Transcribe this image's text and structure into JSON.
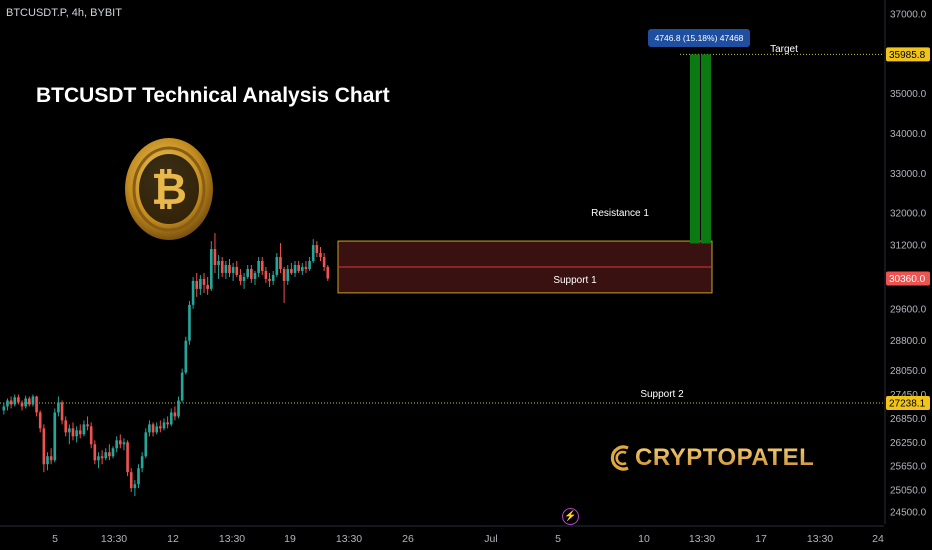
{
  "header": {
    "symbol": "BTCUSDT.P, 4h, BYBIT"
  },
  "title": "BTCUSDT Technical Analysis Chart",
  "brand": {
    "text": "CRYPTOPATEL",
    "icon": "crypto-coin-logo-icon"
  },
  "footer_icon": "lightning-icon",
  "colors": {
    "background": "#000000",
    "up": "#26a69a",
    "down": "#ef5350",
    "zone": "#3a1111",
    "zone_border": "#c9a227",
    "target_bar": "#0b7a13",
    "measure_label": "#1e4fa0",
    "dotted_line": "#c9c332"
  },
  "chart_data": {
    "type": "candlestick",
    "ylim": [
      24200,
      37300
    ],
    "y_axis_ticks": [
      "37000.0",
      "36000.0",
      "35000.0",
      "34000.0",
      "33000.0",
      "32000.0",
      "31200.0",
      "29600.0",
      "28800.0",
      "28050.0",
      "27450.0",
      "26850.0",
      "26250.0",
      "25650.0",
      "25050.0",
      "24500.0"
    ],
    "x_axis_ticks": [
      "5",
      "13:30",
      "12",
      "13:30",
      "19",
      "13:30",
      "26",
      "Jul",
      "5",
      "10",
      "13:30",
      "17",
      "13:30",
      "24"
    ],
    "price_labels": [
      {
        "value": 35985.8,
        "label": "35985.8",
        "color": "#f0c419",
        "text_color": "#000000"
      },
      {
        "value": 30360.0,
        "label": "30360.0",
        "color": "#ef5350",
        "text_color": "#ffffff"
      },
      {
        "value": 27238.1,
        "label": "27238.1",
        "color": "#f0c419",
        "text_color": "#000000"
      }
    ],
    "annotations": {
      "target": {
        "label": "Target",
        "value": 35985.8
      },
      "resistance": {
        "label": "Resistance 1",
        "value": 31300
      },
      "support1": {
        "label": "Support 1",
        "value": 30000
      },
      "support2": {
        "label": "Support 2",
        "value": 27238.1
      },
      "zone": {
        "top": 31300,
        "bottom": 30000,
        "mid": 30650
      },
      "measure": {
        "label": "4746.8 (15.18%) 47468",
        "from": 31240,
        "to": 35985.8
      }
    },
    "candles": [
      [
        0,
        27050,
        27250,
        26950,
        27150
      ],
      [
        1,
        27150,
        27350,
        27050,
        27300
      ],
      [
        2,
        27300,
        27400,
        27100,
        27200
      ],
      [
        3,
        27200,
        27450,
        27150,
        27380
      ],
      [
        4,
        27380,
        27450,
        27200,
        27250
      ],
      [
        5,
        27250,
        27300,
        27050,
        27150
      ],
      [
        6,
        27150,
        27420,
        27100,
        27350
      ],
      [
        7,
        27350,
        27400,
        27150,
        27200
      ],
      [
        8,
        27200,
        27450,
        27150,
        27400
      ],
      [
        9,
        27400,
        27420,
        26900,
        27000
      ],
      [
        10,
        27000,
        27050,
        26500,
        26600
      ],
      [
        11,
        26600,
        26700,
        25500,
        25700
      ],
      [
        12,
        25700,
        26000,
        25550,
        25900
      ],
      [
        13,
        25900,
        26100,
        25700,
        25800
      ],
      [
        14,
        25800,
        27100,
        25750,
        27000
      ],
      [
        15,
        27000,
        27400,
        26900,
        27250
      ],
      [
        16,
        27250,
        27300,
        26700,
        26800
      ],
      [
        17,
        26800,
        26900,
        26400,
        26500
      ],
      [
        18,
        26500,
        26700,
        26200,
        26600
      ],
      [
        19,
        26600,
        26750,
        26300,
        26400
      ],
      [
        20,
        26400,
        26650,
        26250,
        26550
      ],
      [
        21,
        26550,
        26700,
        26350,
        26450
      ],
      [
        22,
        26450,
        26800,
        26400,
        26700
      ],
      [
        23,
        26700,
        26900,
        26550,
        26650
      ],
      [
        24,
        26650,
        26750,
        26100,
        26200
      ],
      [
        25,
        26200,
        26300,
        25700,
        25800
      ],
      [
        26,
        25800,
        26000,
        25600,
        25900
      ],
      [
        27,
        25900,
        26050,
        25700,
        25850
      ],
      [
        28,
        25850,
        26100,
        25800,
        26000
      ],
      [
        29,
        26000,
        26200,
        25800,
        25900
      ],
      [
        30,
        25900,
        26150,
        25850,
        26100
      ],
      [
        31,
        26100,
        26400,
        26000,
        26300
      ],
      [
        32,
        26300,
        26450,
        26100,
        26200
      ],
      [
        33,
        26200,
        26350,
        26050,
        26250
      ],
      [
        34,
        26250,
        26300,
        25400,
        25500
      ],
      [
        35,
        25500,
        25600,
        25000,
        25100
      ],
      [
        36,
        25100,
        25300,
        24900,
        25200
      ],
      [
        37,
        25200,
        25700,
        25100,
        25600
      ],
      [
        38,
        25600,
        26000,
        25500,
        25900
      ],
      [
        39,
        25900,
        26600,
        25850,
        26500
      ],
      [
        40,
        26500,
        26800,
        26400,
        26700
      ],
      [
        41,
        26700,
        26750,
        26400,
        26500
      ],
      [
        42,
        26500,
        26750,
        26450,
        26650
      ],
      [
        43,
        26650,
        26800,
        26500,
        26600
      ],
      [
        44,
        26600,
        26850,
        26550,
        26750
      ],
      [
        45,
        26750,
        26900,
        26600,
        26700
      ],
      [
        46,
        26700,
        27100,
        26650,
        27000
      ],
      [
        47,
        27000,
        27150,
        26800,
        26900
      ],
      [
        48,
        26900,
        27400,
        26850,
        27300
      ],
      [
        49,
        27300,
        28100,
        27250,
        28000
      ],
      [
        50,
        28000,
        28900,
        27950,
        28800
      ],
      [
        51,
        28800,
        29800,
        28700,
        29700
      ],
      [
        52,
        29700,
        30400,
        29600,
        30300
      ],
      [
        53,
        30300,
        30500,
        29900,
        30100
      ],
      [
        54,
        30100,
        30450,
        29950,
        30350
      ],
      [
        55,
        30350,
        30500,
        30000,
        30200
      ],
      [
        56,
        30200,
        30400,
        29950,
        30100
      ],
      [
        57,
        30100,
        31300,
        30050,
        31100
      ],
      [
        58,
        31100,
        31500,
        30500,
        30700
      ],
      [
        59,
        30700,
        30950,
        30350,
        30800
      ],
      [
        60,
        30800,
        30900,
        30400,
        30500
      ],
      [
        61,
        30500,
        30800,
        30350,
        30700
      ],
      [
        62,
        30700,
        30850,
        30400,
        30500
      ],
      [
        63,
        30500,
        30750,
        30300,
        30650
      ],
      [
        64,
        30650,
        30800,
        30400,
        30450
      ],
      [
        65,
        30450,
        30600,
        30200,
        30300
      ],
      [
        66,
        30300,
        30500,
        30100,
        30400
      ],
      [
        67,
        30400,
        30700,
        30350,
        30600
      ],
      [
        68,
        30600,
        30700,
        30250,
        30350
      ],
      [
        69,
        30350,
        30550,
        30200,
        30500
      ],
      [
        70,
        30500,
        30900,
        30400,
        30800
      ],
      [
        71,
        30800,
        30900,
        30450,
        30550
      ],
      [
        72,
        30550,
        30650,
        30250,
        30350
      ],
      [
        73,
        30350,
        30500,
        30150,
        30300
      ],
      [
        74,
        30300,
        30550,
        30200,
        30450
      ],
      [
        75,
        30450,
        31000,
        30400,
        30900
      ],
      [
        76,
        30900,
        31250,
        30500,
        30600
      ],
      [
        77,
        30600,
        30650,
        29750,
        30300
      ],
      [
        78,
        30300,
        30700,
        30200,
        30600
      ],
      [
        79,
        30600,
        30750,
        30450,
        30500
      ],
      [
        80,
        30500,
        30800,
        30400,
        30700
      ],
      [
        81,
        30700,
        30800,
        30500,
        30550
      ],
      [
        82,
        30550,
        30750,
        30450,
        30650
      ],
      [
        83,
        30650,
        30800,
        30500,
        30600
      ],
      [
        84,
        30600,
        30900,
        30550,
        30800
      ],
      [
        85,
        30800,
        31350,
        30750,
        31200
      ],
      [
        86,
        31200,
        31300,
        30900,
        31000
      ],
      [
        87,
        31000,
        31150,
        30800,
        30900
      ],
      [
        88,
        30900,
        31000,
        30550,
        30650
      ],
      [
        89,
        30650,
        30700,
        30300,
        30360
      ]
    ]
  }
}
